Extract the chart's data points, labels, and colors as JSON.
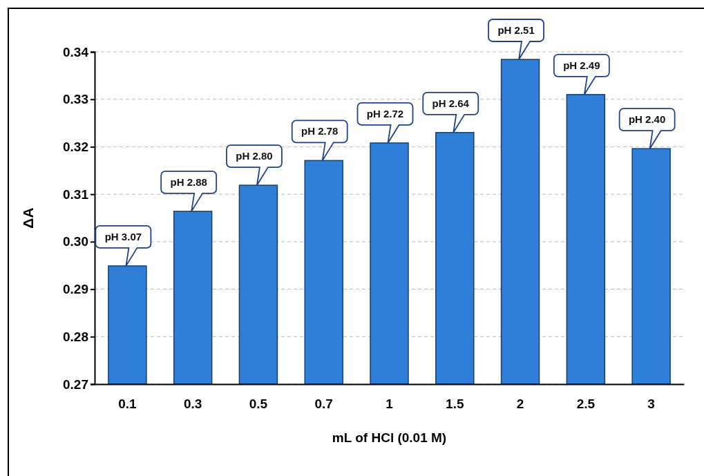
{
  "chart_data": {
    "type": "bar",
    "xlabel": "mL of HCl (0.01 M)",
    "ylabel": "ΔA",
    "categories": [
      "0.1",
      "0.3",
      "0.5",
      "0.7",
      "1",
      "1.5",
      "2",
      "2.5",
      "3"
    ],
    "values": [
      0.2949,
      0.3064,
      0.3119,
      0.3171,
      0.3208,
      0.323,
      0.3384,
      0.331,
      0.3196
    ],
    "color": "#2f7fd8",
    "ylim": [
      0.27,
      0.34
    ],
    "yticks": [
      {
        "value": 0.27,
        "label": "0.27"
      },
      {
        "value": 0.28,
        "label": "0.28"
      },
      {
        "value": 0.29,
        "label": "0.29"
      },
      {
        "value": 0.3,
        "label": "0.30"
      },
      {
        "value": 0.31,
        "label": "0.31"
      },
      {
        "value": 0.32,
        "label": "0.32"
      },
      {
        "value": 0.33,
        "label": "0.33"
      },
      {
        "value": 0.34,
        "label": "0.34"
      }
    ],
    "grid": "y",
    "annotations": [
      {
        "text": "pH 3.07",
        "x": "0.1",
        "y": 0.2949
      },
      {
        "text": "pH 2.88",
        "x": "0.3",
        "y": 0.3064
      },
      {
        "text": "pH 2.80",
        "x": "0.5",
        "y": 0.3119
      },
      {
        "text": "pH 2.78",
        "x": "0.7",
        "y": 0.3171
      },
      {
        "text": "pH 2.72",
        "x": "1",
        "y": 0.3208
      },
      {
        "text": "pH 2.64",
        "x": "1.5",
        "y": 0.323
      },
      {
        "text": "pH 2.51",
        "x": "2",
        "y": 0.3384
      },
      {
        "text": "pH 2.49",
        "x": "2.5",
        "y": 0.331
      },
      {
        "text": "pH 2.40",
        "x": "3",
        "y": 0.3196
      }
    ]
  }
}
